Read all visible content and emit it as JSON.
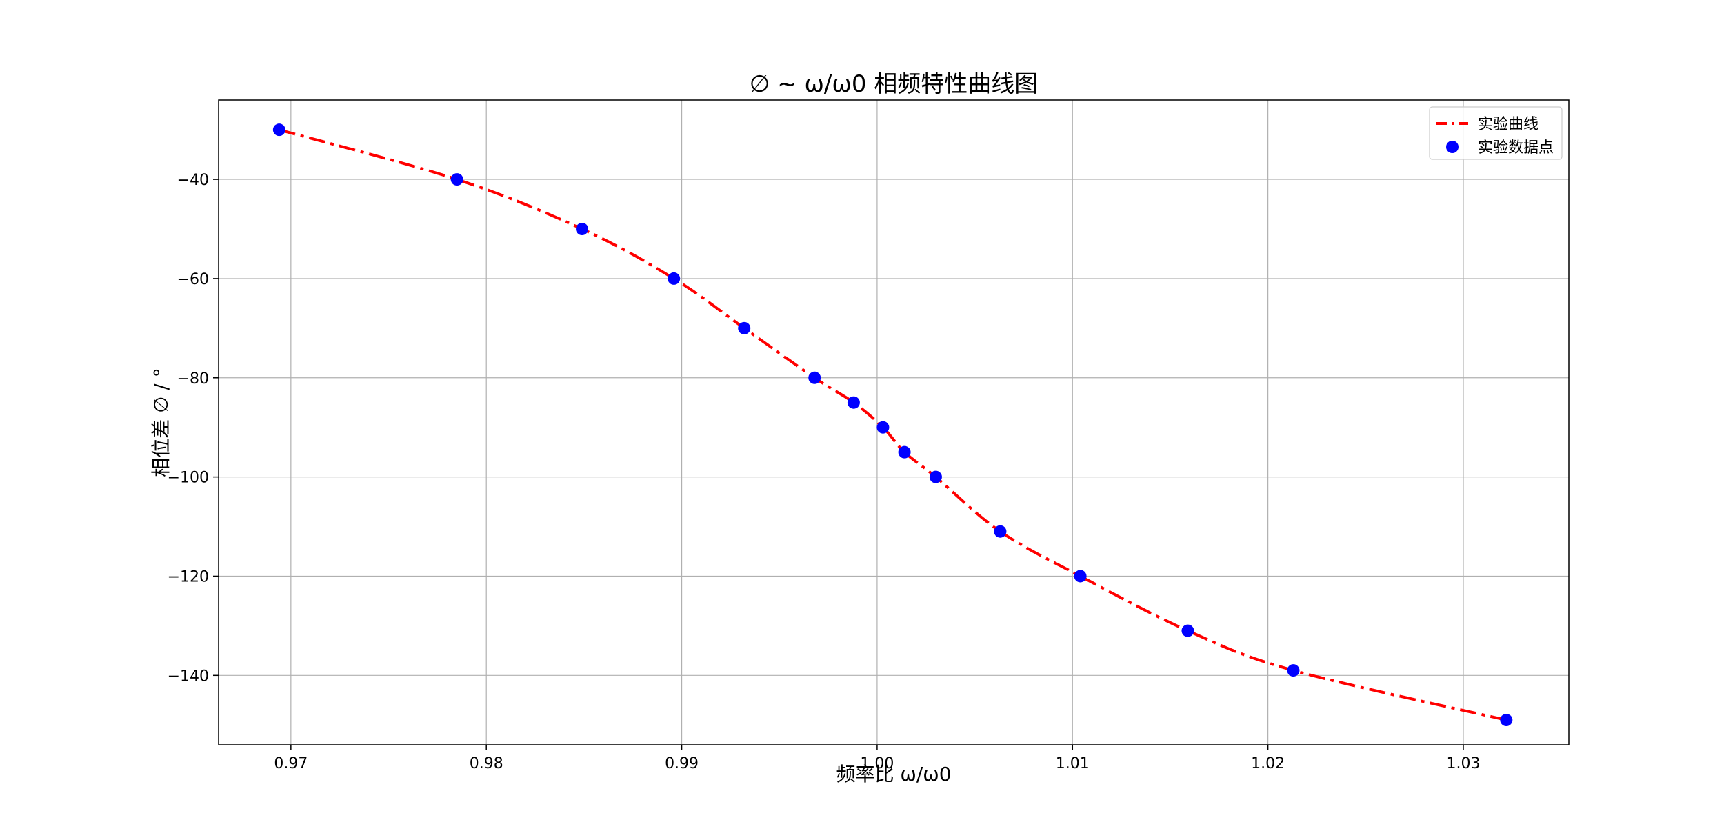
{
  "chart_data": {
    "type": "line",
    "title": "∅ ~ ω/ω0 相频特性曲线图",
    "xlabel": "频率比 ω/ω0",
    "ylabel": "相位差 ∅ / °",
    "xlim": [
      0.9663,
      1.0354
    ],
    "ylim": [
      -154,
      -24
    ],
    "xticks": [
      0.97,
      0.98,
      0.99,
      1.0,
      1.01,
      1.02,
      1.03
    ],
    "xtick_labels": [
      "0.97",
      "0.98",
      "0.99",
      "1.00",
      "1.01",
      "1.02",
      "1.03"
    ],
    "yticks": [
      -140,
      -120,
      -100,
      -80,
      -60,
      -40
    ],
    "ytick_labels": [
      "−140",
      "−120",
      "−100",
      "−80",
      "−60",
      "−40"
    ],
    "grid": true,
    "legend_position": "top-right",
    "series": [
      {
        "name": "实验曲线",
        "kind": "line",
        "style": "dash-dot",
        "color": "#ff0000",
        "x": [
          0.9694,
          0.9785,
          0.9849,
          0.9896,
          0.9932,
          0.9968,
          0.9988,
          1.0003,
          1.0014,
          1.003,
          1.0063,
          1.0104,
          1.0159,
          1.0213,
          1.0322
        ],
        "y": [
          -30,
          -40,
          -50,
          -60,
          -70,
          -80,
          -85,
          -90,
          -95,
          -100,
          -111,
          -120,
          -131,
          -139,
          -149
        ]
      },
      {
        "name": "实验数据点",
        "kind": "scatter",
        "color": "#0000ff",
        "x": [
          0.9694,
          0.9785,
          0.9849,
          0.9896,
          0.9932,
          0.9968,
          0.9988,
          1.0003,
          1.0014,
          1.003,
          1.0063,
          1.0104,
          1.0159,
          1.0213,
          1.0322
        ],
        "y": [
          -30,
          -40,
          -50,
          -60,
          -70,
          -80,
          -85,
          -90,
          -95,
          -100,
          -111,
          -120,
          -131,
          -139,
          -149
        ]
      }
    ]
  }
}
